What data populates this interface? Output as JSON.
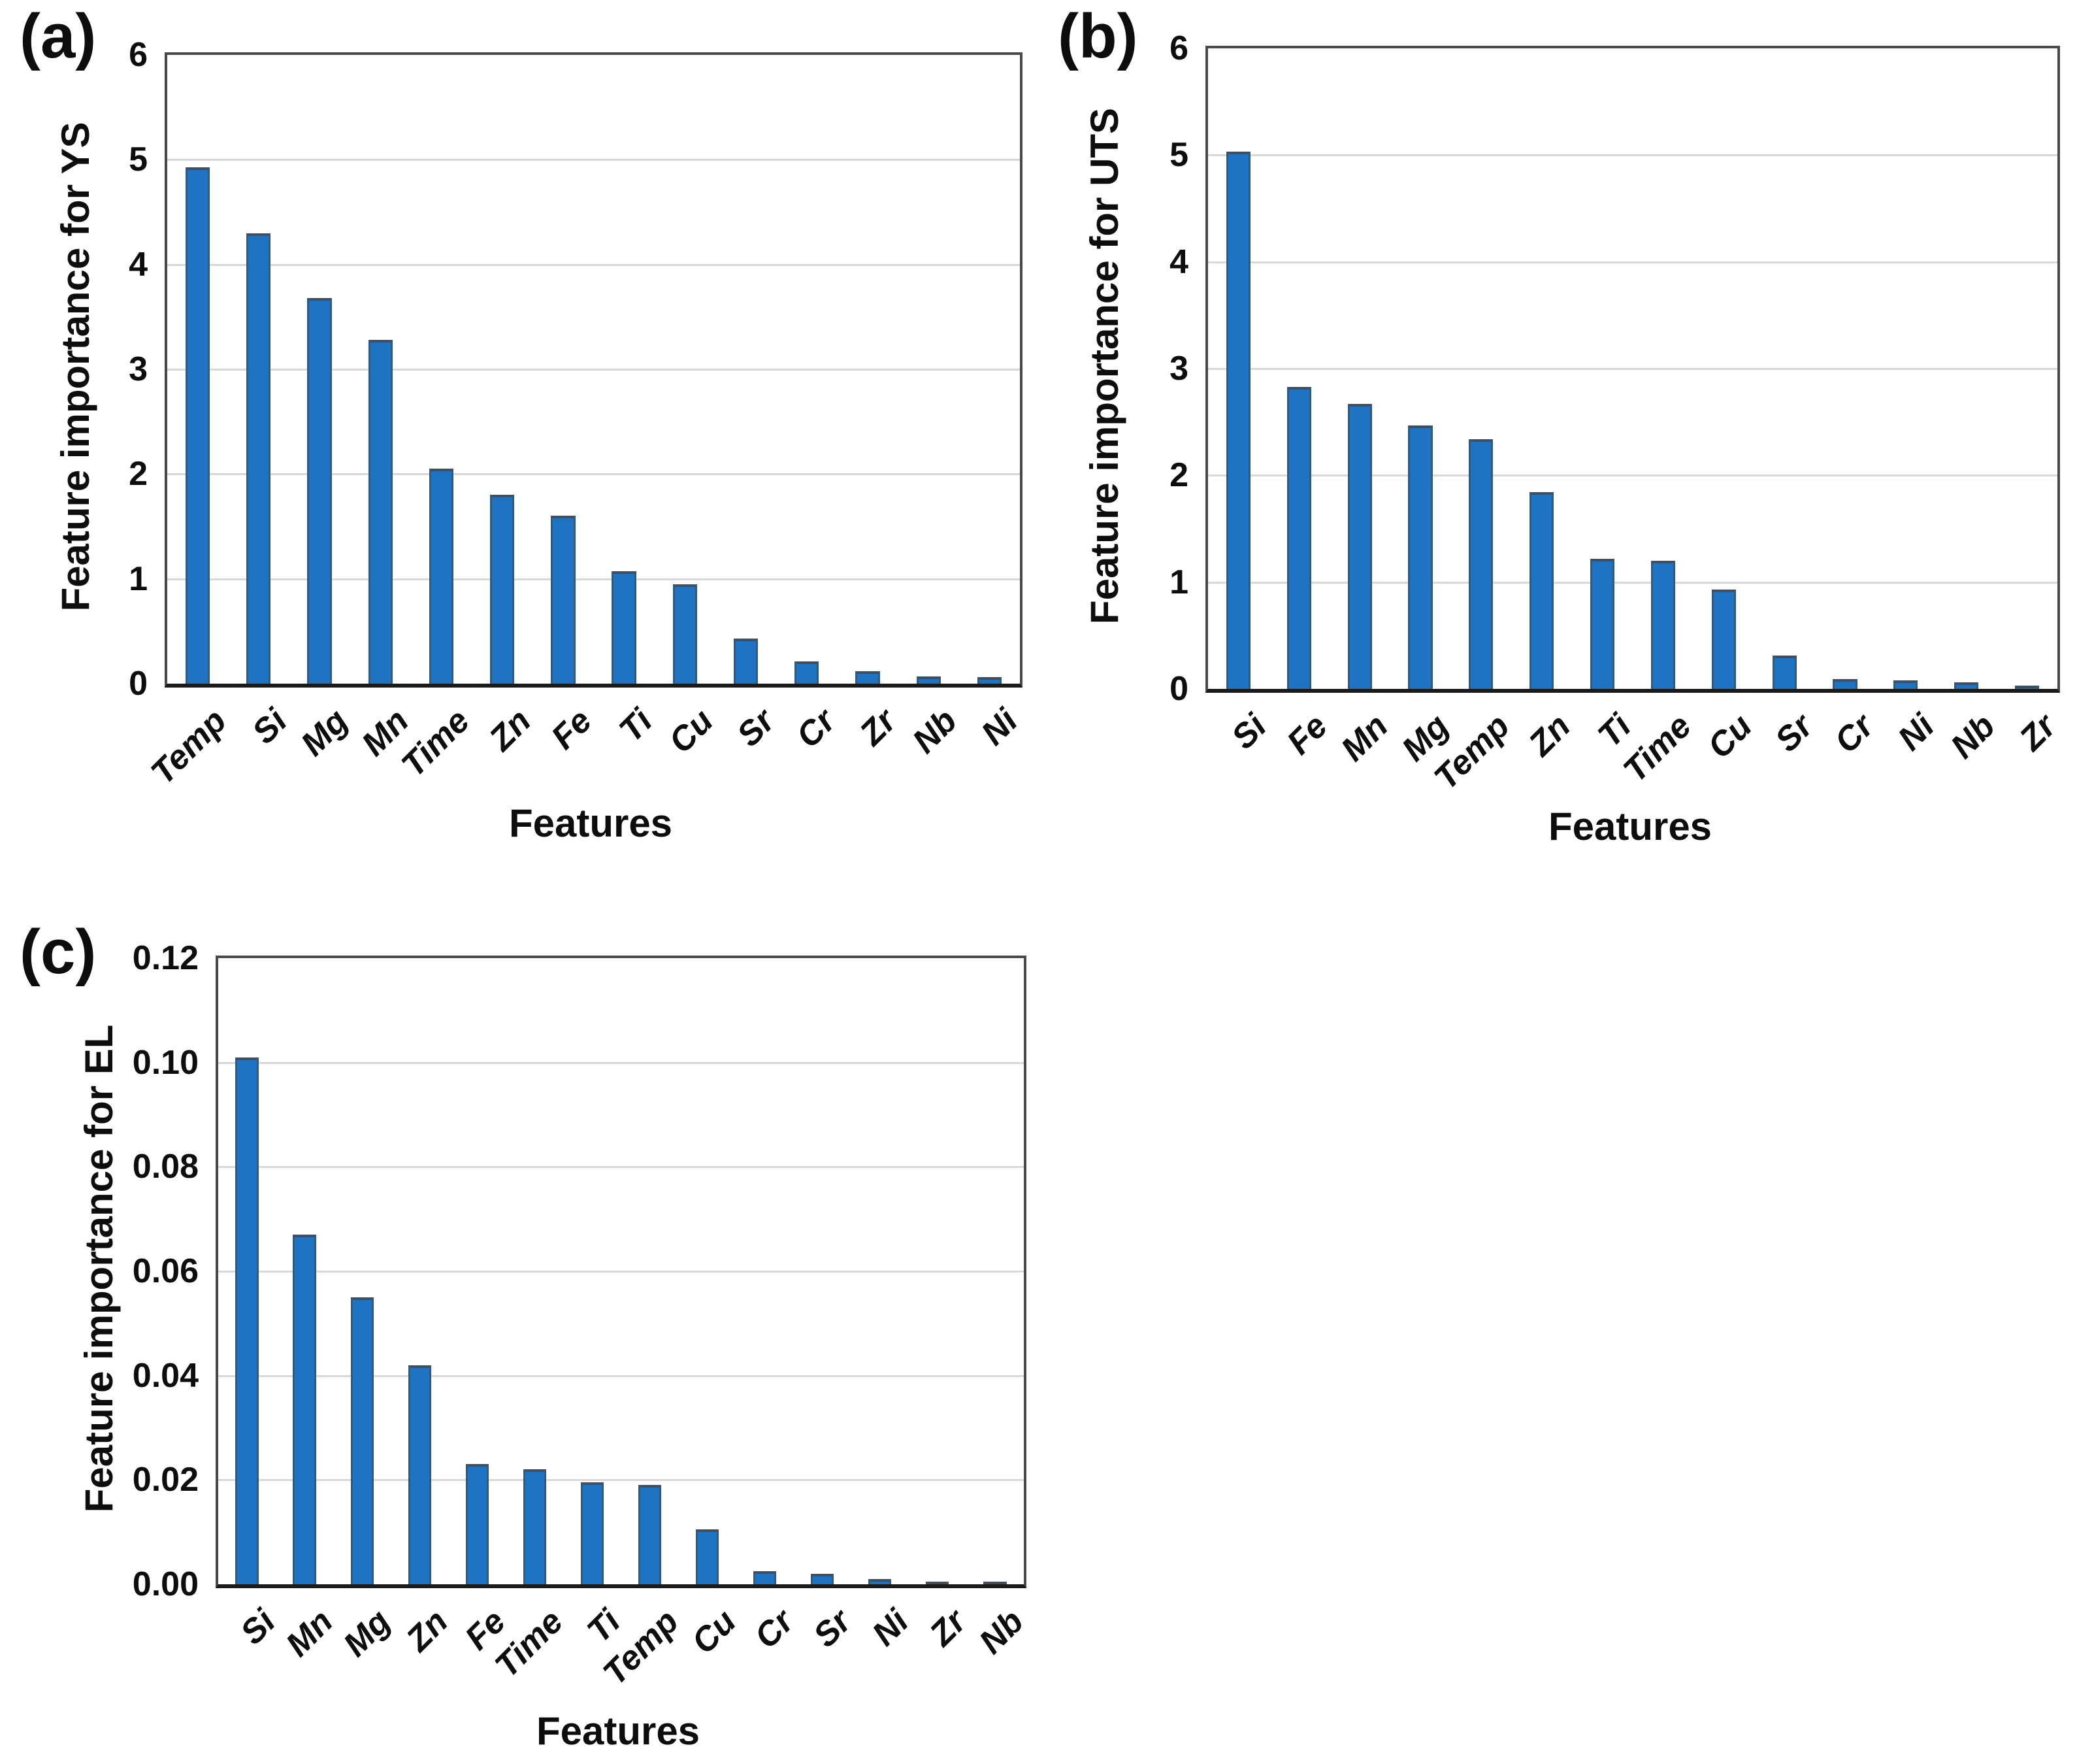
{
  "figure": {
    "background": "#ffffff",
    "bar_fill": "#1e73c2",
    "bar_edge": "#474e57",
    "gridline_color": "#d9d9d9",
    "frame_color": "#4a4a4a",
    "axis_color": "#1b1b1b",
    "text_color": "#0d0d0d"
  },
  "chart_data": [
    {
      "type": "bar",
      "panel_label": "(a)",
      "ylabel": "Feature importance for YS",
      "xlabel": "Features",
      "ylim": [
        0,
        6
      ],
      "yticks": [
        0,
        1,
        2,
        3,
        4,
        5,
        6
      ],
      "ytick_labels": [
        "0",
        "1",
        "2",
        "3",
        "4",
        "5",
        "6"
      ],
      "grid": true,
      "legend": false,
      "categories": [
        "Temp",
        "Si",
        "Mg",
        "Mn",
        "Time",
        "Zn",
        "Fe",
        "Ti",
        "Cu",
        "Sr",
        "Cr",
        "Zr",
        "Nb",
        "Ni"
      ],
      "values": [
        4.93,
        4.3,
        3.68,
        3.28,
        2.05,
        1.8,
        1.6,
        1.07,
        0.95,
        0.43,
        0.21,
        0.12,
        0.07,
        0.06
      ]
    },
    {
      "type": "bar",
      "panel_label": "(b)",
      "ylabel": "Feature importance for UTS",
      "xlabel": "Features",
      "ylim": [
        0,
        6
      ],
      "yticks": [
        0,
        1,
        2,
        3,
        4,
        5,
        6
      ],
      "ytick_labels": [
        "0",
        "1",
        "2",
        "3",
        "4",
        "5",
        "6"
      ],
      "grid": true,
      "legend": false,
      "categories": [
        "Si",
        "Fe",
        "Mn",
        "Mg",
        "Temp",
        "Zn",
        "Ti",
        "Time",
        "Cu",
        "Sr",
        "Cr",
        "Ni",
        "Nb",
        "Zr"
      ],
      "values": [
        5.03,
        2.83,
        2.67,
        2.47,
        2.34,
        1.84,
        1.22,
        1.2,
        0.93,
        0.31,
        0.09,
        0.08,
        0.06,
        0.03
      ]
    },
    {
      "type": "bar",
      "panel_label": "(c)",
      "ylabel": "Feature importance for EL",
      "xlabel": "Features",
      "ylim": [
        0,
        0.12
      ],
      "yticks": [
        0,
        0.02,
        0.04,
        0.06,
        0.08,
        0.1,
        0.12
      ],
      "ytick_labels": [
        "0.00",
        "0.02",
        "0.04",
        "0.06",
        "0.08",
        "0.10",
        "0.12"
      ],
      "grid": true,
      "legend": false,
      "categories": [
        "Si",
        "Mn",
        "Mg",
        "Zn",
        "Fe",
        "Time",
        "Ti",
        "Temp",
        "Cu",
        "Cr",
        "Sr",
        "Ni",
        "Zr",
        "Nb"
      ],
      "values": [
        0.101,
        0.067,
        0.055,
        0.042,
        0.023,
        0.022,
        0.0195,
        0.019,
        0.0105,
        0.0025,
        0.002,
        0.001,
        0.0005,
        0.0001
      ]
    }
  ]
}
